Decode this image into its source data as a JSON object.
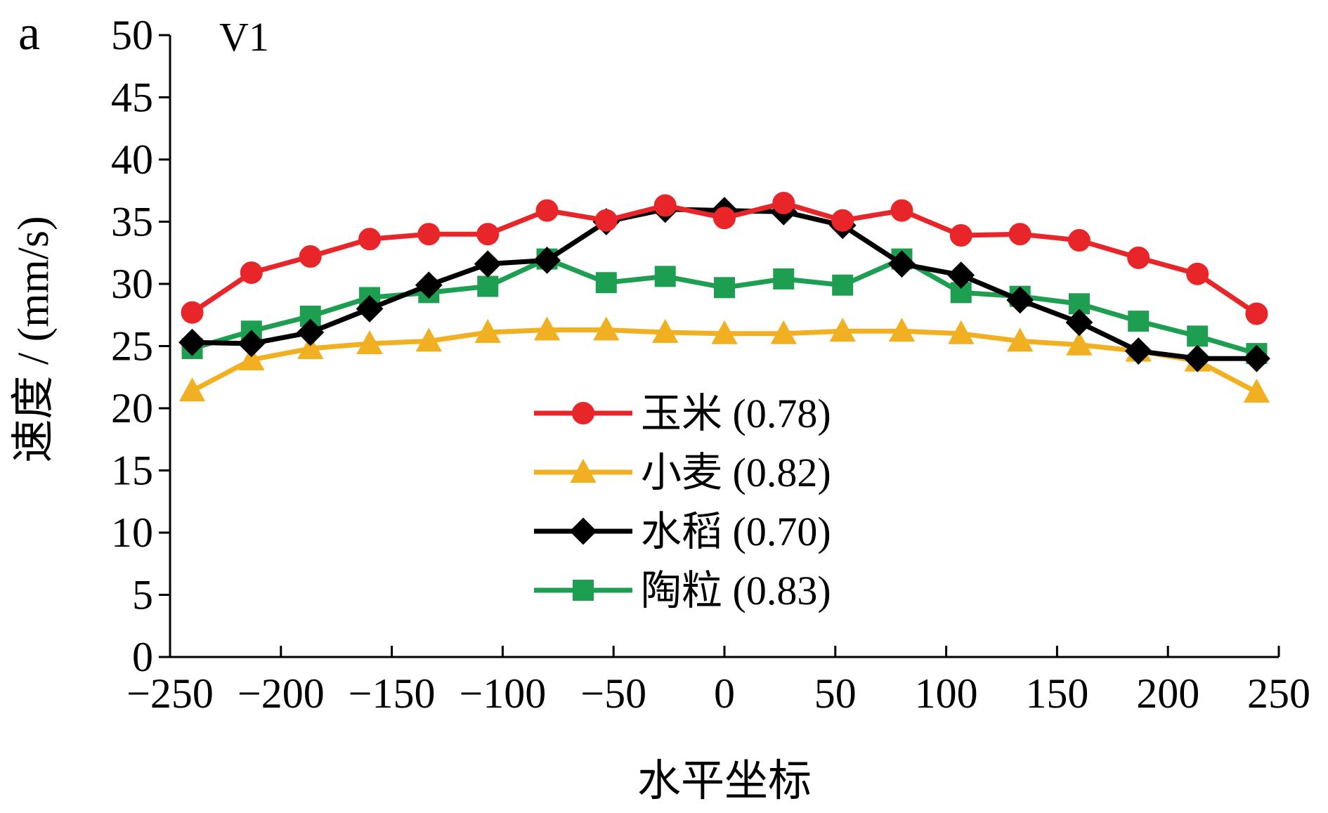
{
  "chart_data": {
    "type": "line",
    "panel_label": "a",
    "subtitle": "V1",
    "title": "",
    "xlabel": "水平坐标",
    "ylabel": "速度 / (mm/s)",
    "xlim": [
      -250,
      250
    ],
    "ylim": [
      0,
      50
    ],
    "x_ticks": [
      -250,
      -200,
      -150,
      -100,
      -50,
      0,
      50,
      100,
      150,
      200,
      250
    ],
    "x_tick_labels": [
      "−250",
      "−200",
      "−150",
      "−100",
      "−50",
      "0",
      "50",
      "100",
      "150",
      "200",
      "250"
    ],
    "y_ticks": [
      0,
      5,
      10,
      15,
      20,
      25,
      30,
      35,
      40,
      45,
      50
    ],
    "y_tick_labels": [
      "0",
      "5",
      "10",
      "15",
      "20",
      "25",
      "30",
      "35",
      "40",
      "45",
      "50"
    ],
    "grid": false,
    "legend_position": "center",
    "x": [
      -240,
      -213.3,
      -186.7,
      -160,
      -133.3,
      -106.7,
      -80,
      -53.3,
      -26.7,
      0,
      26.7,
      53.3,
      80,
      106.7,
      133.3,
      160,
      186.7,
      213.3,
      240
    ],
    "series": [
      {
        "name": "玉米 (0.78)",
        "color": "#e8262a",
        "marker": "circle",
        "values": [
          27.7,
          30.9,
          32.2,
          33.6,
          34.0,
          34.0,
          35.9,
          35.1,
          36.3,
          35.3,
          36.5,
          35.1,
          35.9,
          33.9,
          34.0,
          33.5,
          32.1,
          30.8,
          27.6
        ]
      },
      {
        "name": "小麦 (0.82)",
        "color": "#f0b021",
        "marker": "triangle",
        "values": [
          21.4,
          23.9,
          24.8,
          25.2,
          25.4,
          26.1,
          26.3,
          26.3,
          26.1,
          26.0,
          26.0,
          26.2,
          26.2,
          26.0,
          25.4,
          25.1,
          24.6,
          23.8,
          21.3
        ]
      },
      {
        "name": "水稻 (0.70)",
        "color": "#000000",
        "marker": "diamond",
        "values": [
          25.3,
          25.2,
          26.1,
          28.0,
          29.9,
          31.6,
          31.9,
          35.0,
          36.0,
          35.9,
          35.8,
          34.7,
          31.6,
          30.7,
          28.7,
          26.9,
          24.6,
          24.0,
          24.0
        ]
      },
      {
        "name": "陶粒 (0.83)",
        "color": "#1e9e50",
        "marker": "square",
        "values": [
          24.8,
          26.2,
          27.4,
          28.9,
          29.3,
          29.8,
          32.0,
          30.1,
          30.6,
          29.7,
          30.4,
          29.9,
          32.0,
          29.3,
          29.0,
          28.4,
          27.0,
          25.8,
          24.4
        ]
      }
    ]
  }
}
